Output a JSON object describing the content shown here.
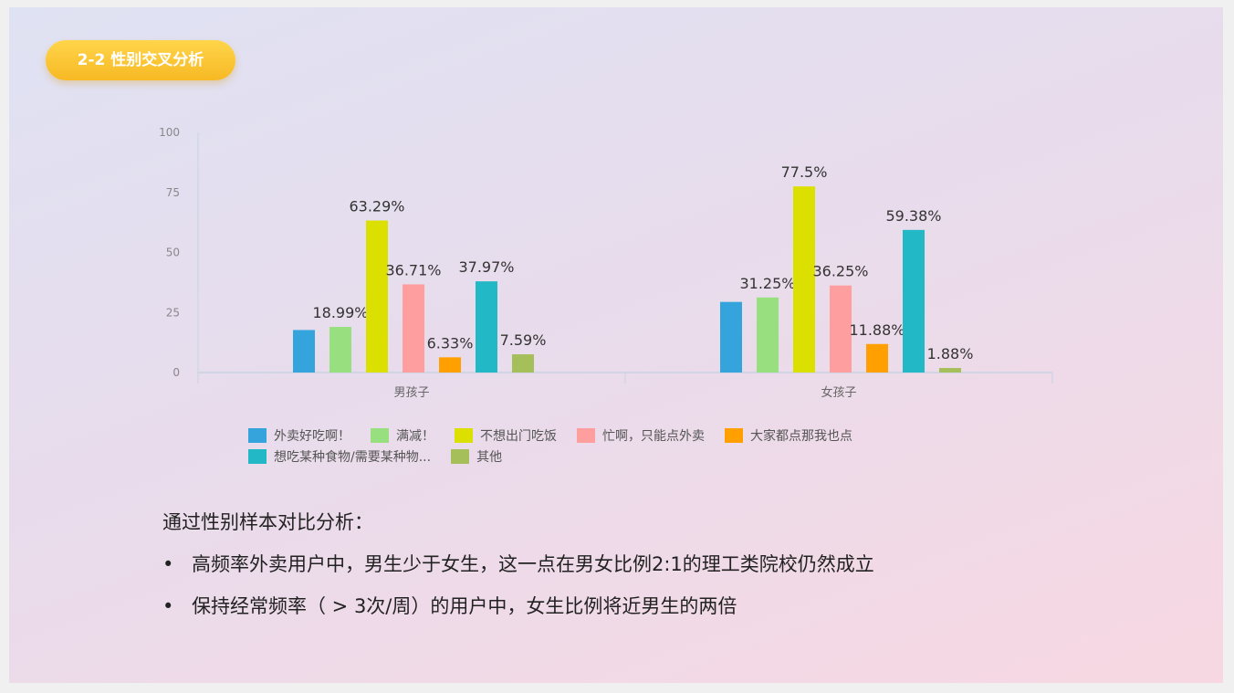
{
  "title_badge": "2-2  性别交叉分析",
  "chart_data": {
    "type": "bar",
    "categories": [
      "男孩子",
      "女孩子"
    ],
    "ylim": [
      0,
      100
    ],
    "yticks": [
      0,
      25,
      50,
      75,
      100
    ],
    "legend_position": "bottom",
    "series": [
      {
        "name": "外卖好吃啊！",
        "color": "#35a4dc",
        "values": [
          17.7,
          29.4
        ],
        "labels": [
          "",
          ""
        ]
      },
      {
        "name": "满减！",
        "color": "#98df7f",
        "values": [
          18.99,
          31.25
        ],
        "labels": [
          "18.99%",
          "31.25%"
        ]
      },
      {
        "name": "不想出门吃饭",
        "color": "#dbe000",
        "values": [
          63.29,
          77.5
        ],
        "labels": [
          "63.29%",
          "77.5%"
        ]
      },
      {
        "name": "忙啊，只能点外卖",
        "color": "#ff9e9e",
        "values": [
          36.71,
          36.25
        ],
        "labels": [
          "36.71%",
          "36.25%"
        ]
      },
      {
        "name": "大家都点那我也点",
        "color": "#ffa000",
        "values": [
          6.33,
          11.88
        ],
        "labels": [
          "6.33%",
          "11.88%"
        ]
      },
      {
        "name": "想吃某种食物/需要某种物...",
        "color": "#22b8c6",
        "values": [
          37.97,
          59.38
        ],
        "labels": [
          "37.97%",
          "59.38%"
        ]
      },
      {
        "name": "其他",
        "color": "#a5bf5a",
        "values": [
          7.59,
          1.88
        ],
        "labels": [
          "7.59%",
          "1.88%"
        ]
      }
    ]
  },
  "notes": {
    "heading": "通过性别样本对比分析：",
    "bullets": [
      "高频率外卖用户中，男生少于女生，这一点在男女比例2:1的理工类院校仍然成立",
      "保持经常频率（ > 3次/周）的用户中，女生比例将近男生的两倍"
    ]
  }
}
